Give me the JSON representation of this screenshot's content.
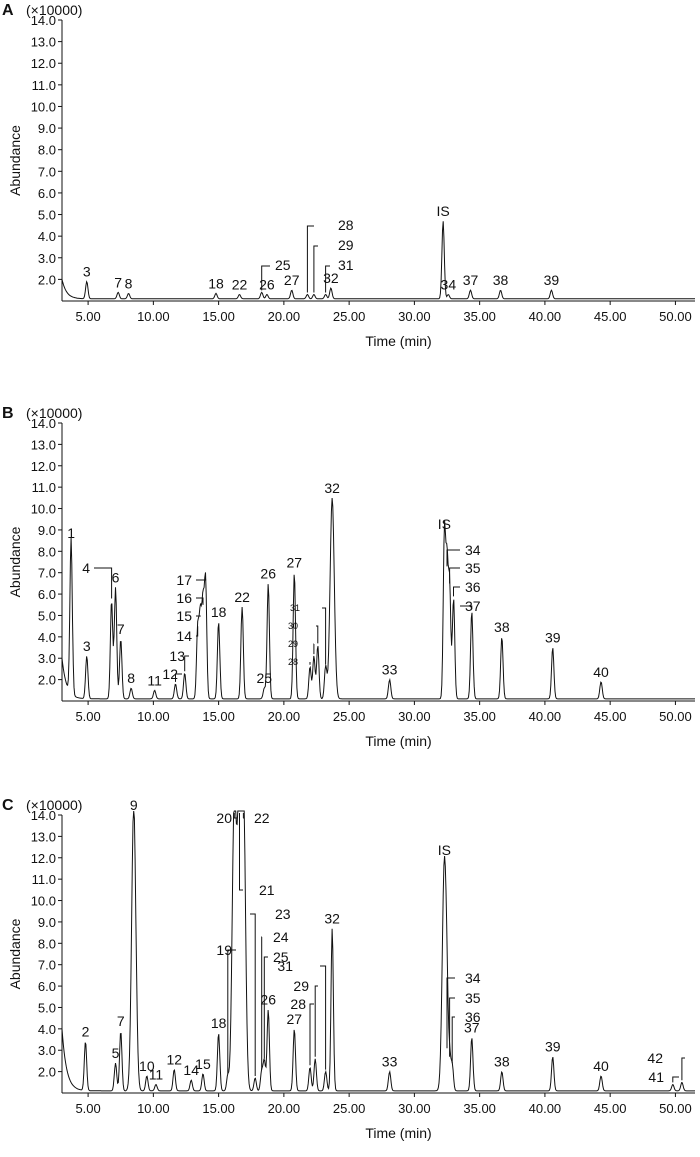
{
  "chart_data": [
    {
      "type": "line",
      "panel_label": "A",
      "multiplier": "(×10000)",
      "ylabel": "Abundance",
      "xlabel": "Time (min)",
      "xlim": [
        3.0,
        51.5
      ],
      "ylim": [
        1.0,
        14.0
      ],
      "x_ticks": [
        "5.00",
        "10.00",
        "15.00",
        "20.00",
        "25.00",
        "30.00",
        "35.00",
        "40.00",
        "45.00",
        "50.00"
      ],
      "y_ticks": [
        "2.0",
        "3.0",
        "4.0",
        "5.0",
        "6.0",
        "7.0",
        "8.0",
        "9.0",
        "10.0",
        "11.0",
        "12.0",
        "13.0",
        "14.0"
      ],
      "baseline": 1.1,
      "start_tail": 2.0,
      "peaks": [
        {
          "label": "3",
          "x": 4.9,
          "y": 1.9
        },
        {
          "label": "7",
          "x": 7.3,
          "y": 1.4
        },
        {
          "label": "8",
          "x": 8.1,
          "y": 1.35
        },
        {
          "label": "18",
          "x": 14.8,
          "y": 1.35
        },
        {
          "label": "22",
          "x": 16.6,
          "y": 1.3
        },
        {
          "label": "25",
          "x": 18.3,
          "y": 1.4
        },
        {
          "label": "26",
          "x": 18.7,
          "y": 1.3
        },
        {
          "label": "27",
          "x": 20.6,
          "y": 1.5
        },
        {
          "label": "28",
          "x": 21.8,
          "y": 1.3
        },
        {
          "label": "29",
          "x": 22.3,
          "y": 1.3
        },
        {
          "label": "31",
          "x": 23.2,
          "y": 1.3
        },
        {
          "label": "32",
          "x": 23.6,
          "y": 1.6
        },
        {
          "label": "IS",
          "x": 32.2,
          "y": 4.7
        },
        {
          "label": "34",
          "x": 32.6,
          "y": 1.3
        },
        {
          "label": "37",
          "x": 34.3,
          "y": 1.5
        },
        {
          "label": "38",
          "x": 36.6,
          "y": 1.5
        },
        {
          "label": "39",
          "x": 40.5,
          "y": 1.5
        }
      ]
    },
    {
      "type": "line",
      "panel_label": "B",
      "multiplier": "(×10000)",
      "ylabel": "Abundance",
      "xlabel": "Time (min)",
      "xlim": [
        3.0,
        51.5
      ],
      "ylim": [
        1.0,
        14.0
      ],
      "x_ticks": [
        "5.00",
        "10.00",
        "15.00",
        "20.00",
        "25.00",
        "30.00",
        "35.00",
        "40.00",
        "45.00",
        "50.00"
      ],
      "y_ticks": [
        "2.0",
        "3.0",
        "4.0",
        "5.0",
        "6.0",
        "7.0",
        "8.0",
        "9.0",
        "10.0",
        "11.0",
        "12.0",
        "13.0",
        "14.0"
      ],
      "baseline": 1.1,
      "start_tail": 3.0,
      "peaks": [
        {
          "label": "1",
          "x": 3.7,
          "y": 8.4
        },
        {
          "label": "3",
          "x": 4.9,
          "y": 3.1
        },
        {
          "label": "4",
          "x": 6.8,
          "y": 5.7
        },
        {
          "label": "6",
          "x": 7.1,
          "y": 6.3
        },
        {
          "label": "7",
          "x": 7.5,
          "y": 3.9
        },
        {
          "label": "8",
          "x": 8.3,
          "y": 1.6
        },
        {
          "label": "11",
          "x": 10.1,
          "y": 1.5
        },
        {
          "label": "12",
          "x": 11.7,
          "y": 1.8
        },
        {
          "label": "13",
          "x": 12.4,
          "y": 2.3
        },
        {
          "label": "14",
          "x": 13.4,
          "y": 4.4
        },
        {
          "label": "15",
          "x": 13.6,
          "y": 4.9
        },
        {
          "label": "16",
          "x": 13.8,
          "y": 5.4
        },
        {
          "label": "17",
          "x": 14.0,
          "y": 6.6
        },
        {
          "label": "18",
          "x": 15.0,
          "y": 4.7
        },
        {
          "label": "22",
          "x": 16.8,
          "y": 5.4
        },
        {
          "label": "25",
          "x": 18.5,
          "y": 1.6
        },
        {
          "label": "26",
          "x": 18.8,
          "y": 6.5
        },
        {
          "label": "27",
          "x": 20.8,
          "y": 7.0
        },
        {
          "label": "28",
          "x": 22.0,
          "y": 2.6
        },
        {
          "label": "29",
          "x": 22.3,
          "y": 3.1
        },
        {
          "label": "30",
          "x": 22.6,
          "y": 3.6
        },
        {
          "label": "31",
          "x": 23.2,
          "y": 2.6
        },
        {
          "label": "32",
          "x": 23.7,
          "y": 10.5
        },
        {
          "label": "33",
          "x": 28.1,
          "y": 2.0
        },
        {
          "label": "IS",
          "x": 32.3,
          "y": 8.8
        },
        {
          "label": "34",
          "x": 32.5,
          "y": 7.2
        },
        {
          "label": "35",
          "x": 32.7,
          "y": 6.4
        },
        {
          "label": "36",
          "x": 33.0,
          "y": 5.8
        },
        {
          "label": "37",
          "x": 34.4,
          "y": 5.2
        },
        {
          "label": "38",
          "x": 36.7,
          "y": 4.0
        },
        {
          "label": "39",
          "x": 40.6,
          "y": 3.5
        },
        {
          "label": "40",
          "x": 44.3,
          "y": 1.9
        }
      ]
    },
    {
      "type": "line",
      "panel_label": "C",
      "multiplier": "(×10000)",
      "ylabel": "Abundance",
      "xlabel": "Time (min)",
      "xlim": [
        3.0,
        51.5
      ],
      "ylim": [
        1.0,
        14.0
      ],
      "x_ticks": [
        "5.00",
        "10.00",
        "15.00",
        "20.00",
        "25.00",
        "30.00",
        "35.00",
        "40.00",
        "45.00",
        "50.00"
      ],
      "y_ticks": [
        "2.0",
        "3.0",
        "4.0",
        "5.0",
        "6.0",
        "7.0",
        "8.0",
        "9.0",
        "10.0",
        "11.0",
        "12.0",
        "13.0",
        "14.0"
      ],
      "baseline": 1.1,
      "start_tail": 4.0,
      "peaks": [
        {
          "label": "2",
          "x": 4.8,
          "y": 3.4
        },
        {
          "label": "5",
          "x": 7.1,
          "y": 2.4
        },
        {
          "label": "7",
          "x": 7.5,
          "y": 3.9
        },
        {
          "label": "9",
          "x": 8.5,
          "y": 14.5
        },
        {
          "label": "10",
          "x": 9.5,
          "y": 1.8
        },
        {
          "label": "11",
          "x": 10.2,
          "y": 1.4
        },
        {
          "label": "12",
          "x": 11.6,
          "y": 2.1
        },
        {
          "label": "14",
          "x": 12.9,
          "y": 1.6
        },
        {
          "label": "15",
          "x": 13.8,
          "y": 1.9
        },
        {
          "label": "18",
          "x": 15.0,
          "y": 3.8
        },
        {
          "label": "19",
          "x": 15.7,
          "y": 1.8
        },
        {
          "label": "20",
          "x": 16.2,
          "y": 14.5
        },
        {
          "label": "21",
          "x": 16.6,
          "y": 14.5
        },
        {
          "label": "22",
          "x": 16.9,
          "y": 14.5
        },
        {
          "label": "23",
          "x": 17.8,
          "y": 1.7
        },
        {
          "label": "24",
          "x": 18.3,
          "y": 2.0
        },
        {
          "label": "25",
          "x": 18.5,
          "y": 2.5
        },
        {
          "label": "26",
          "x": 18.8,
          "y": 4.9
        },
        {
          "label": "27",
          "x": 20.8,
          "y": 4.0
        },
        {
          "label": "28",
          "x": 22.0,
          "y": 2.2
        },
        {
          "label": "29",
          "x": 22.4,
          "y": 2.6
        },
        {
          "label": "31",
          "x": 23.2,
          "y": 2.0
        },
        {
          "label": "32",
          "x": 23.7,
          "y": 8.7
        },
        {
          "label": "33",
          "x": 28.1,
          "y": 2.0
        },
        {
          "label": "IS",
          "x": 32.3,
          "y": 11.9
        },
        {
          "label": "34",
          "x": 32.5,
          "y": 3.0
        },
        {
          "label": "35",
          "x": 32.7,
          "y": 2.6
        },
        {
          "label": "36",
          "x": 32.9,
          "y": 2.3
        },
        {
          "label": "37",
          "x": 34.4,
          "y": 3.6
        },
        {
          "label": "38",
          "x": 36.7,
          "y": 2.0
        },
        {
          "label": "39",
          "x": 40.6,
          "y": 2.7
        },
        {
          "label": "40",
          "x": 44.3,
          "y": 1.8
        },
        {
          "label": "41",
          "x": 49.8,
          "y": 1.4
        },
        {
          "label": "42",
          "x": 50.5,
          "y": 1.5
        }
      ]
    }
  ]
}
